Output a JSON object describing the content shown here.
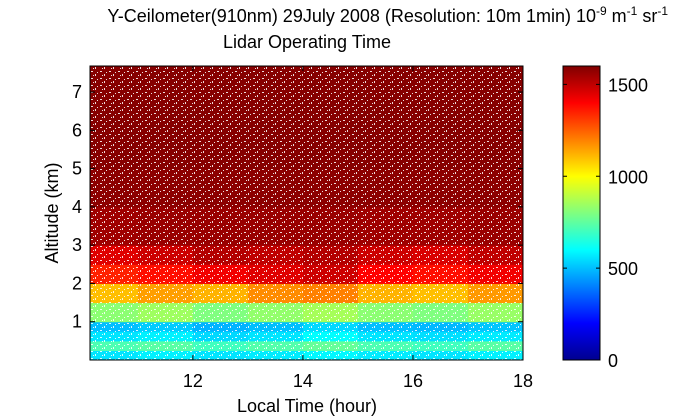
{
  "chart_data": {
    "type": "heatmap",
    "title": [
      "Y-Ceilometer(910nm) 29July 2008 (Resolution: 10m 1min) 10",
      "-9",
      " m",
      "-1",
      " sr",
      "-1"
    ],
    "subtitle": "Lidar Operating Time",
    "xlabel": "Local Time (hour)",
    "ylabel": "Altitude (km)",
    "xlim": [
      10.13,
      18
    ],
    "ylim": [
      0,
      7.68
    ],
    "xticks": [
      12,
      14,
      16,
      18
    ],
    "yticks": [
      1,
      2,
      3,
      4,
      5,
      6,
      7
    ],
    "x_edges": [
      10.13,
      11,
      12,
      13,
      14,
      15,
      16,
      17,
      18
    ],
    "y_edges": [
      0,
      0.25,
      0.5,
      0.75,
      1,
      1.5,
      2,
      2.5,
      3,
      4,
      5,
      6,
      7.68
    ],
    "z": [
      [
        560,
        580,
        560,
        570,
        590,
        570,
        560,
        580
      ],
      [
        720,
        740,
        700,
        730,
        760,
        720,
        700,
        740
      ],
      [
        560,
        580,
        540,
        560,
        600,
        560,
        550,
        570
      ],
      [
        500,
        520,
        480,
        500,
        540,
        500,
        490,
        510
      ],
      [
        820,
        850,
        800,
        830,
        860,
        820,
        800,
        840
      ],
      [
        1100,
        1150,
        1120,
        1180,
        1200,
        1120,
        1100,
        1160
      ],
      [
        1350,
        1380,
        1420,
        1450,
        1480,
        1400,
        1380,
        1420
      ],
      [
        1450,
        1480,
        1520,
        1500,
        1520,
        1480,
        1460,
        1500
      ],
      [
        1550,
        1560,
        1560,
        1560,
        1560,
        1550,
        1550,
        1560
      ],
      [
        1580,
        1580,
        1580,
        1580,
        1580,
        1580,
        1580,
        1580
      ],
      [
        1590,
        1590,
        1590,
        1590,
        1590,
        1590,
        1590,
        1590
      ],
      [
        1590,
        1590,
        1590,
        1590,
        1590,
        1590,
        1590,
        1590
      ]
    ],
    "colormap": "jet",
    "clim": [
      0,
      1600
    ],
    "cticks": [
      0,
      500,
      1000,
      1500
    ]
  }
}
